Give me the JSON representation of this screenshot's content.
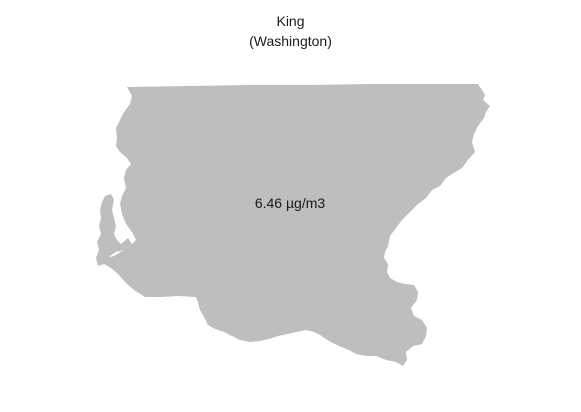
{
  "map": {
    "title": "King",
    "subtitle": "(Washington)",
    "region_name": "King",
    "state": "Washington",
    "value_label": "6.46 µg/m3",
    "value": 6.46,
    "unit": "µg/m3",
    "fill_color": "#bebebe",
    "text_color": "#1a1a1a",
    "background_color": "#ffffff"
  }
}
